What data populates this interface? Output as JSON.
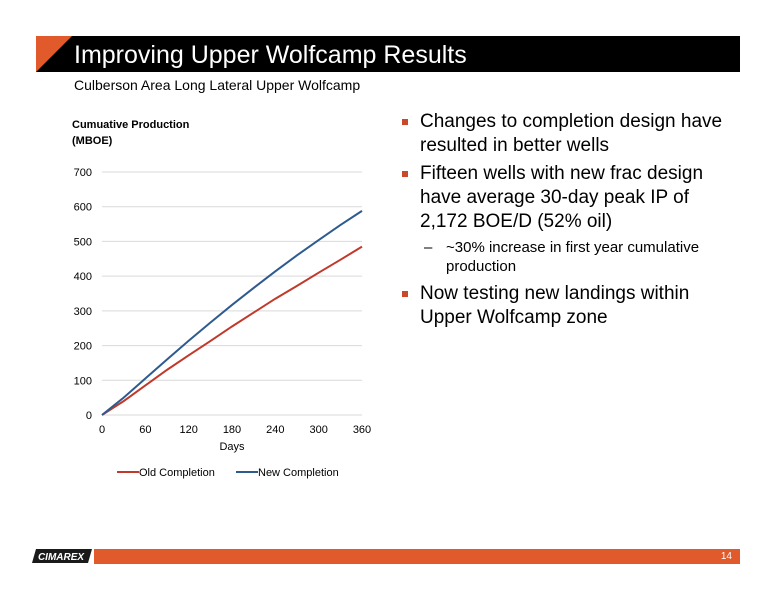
{
  "slide": {
    "title": "Improving Upper Wolfcamp Results",
    "subtitle": "Culberson Area Long Lateral Upper Wolfcamp",
    "page_number": "14",
    "logo_text": "CIMAREX"
  },
  "colors": {
    "accent": "#e05a2b",
    "title_bar": "#000000",
    "old_completion": "#c0392b",
    "new_completion": "#2e5b8f",
    "grid": "#d9d9d9"
  },
  "bullets": [
    {
      "level": 1,
      "text": "Changes to completion design have resulted in better wells"
    },
    {
      "level": 1,
      "text": "Fifteen wells with new frac design have average 30-day peak IP of 2,172 BOE/D (52% oil)"
    },
    {
      "level": 2,
      "text": "~30% increase in first year cumulative production"
    },
    {
      "level": 1,
      "text": "Now testing new landings within Upper Wolfcamp zone"
    }
  ],
  "chart_data": {
    "type": "line",
    "ylabel_lines": [
      "Cumuative Production",
      "(MBOE)"
    ],
    "xlabel": "Days",
    "xlim": [
      0,
      360
    ],
    "ylim": [
      0,
      700
    ],
    "x_ticks": [
      0,
      60,
      120,
      180,
      240,
      300,
      360
    ],
    "y_ticks": [
      0,
      100,
      200,
      300,
      400,
      500,
      600,
      700
    ],
    "grid": true,
    "legend_position": "bottom",
    "x": [
      0,
      15,
      30,
      60,
      90,
      120,
      150,
      180,
      210,
      240,
      270,
      300,
      330,
      360
    ],
    "series": [
      {
        "name": "Old Completion",
        "color": "#c0392b",
        "values": [
          0,
          20,
          40,
          85,
          130,
          172,
          213,
          255,
          295,
          335,
          372,
          410,
          447,
          485
        ]
      },
      {
        "name": "New Completion",
        "color": "#2e5b8f",
        "values": [
          0,
          25,
          50,
          105,
          160,
          214,
          266,
          317,
          366,
          414,
          460,
          504,
          547,
          588
        ]
      }
    ]
  }
}
